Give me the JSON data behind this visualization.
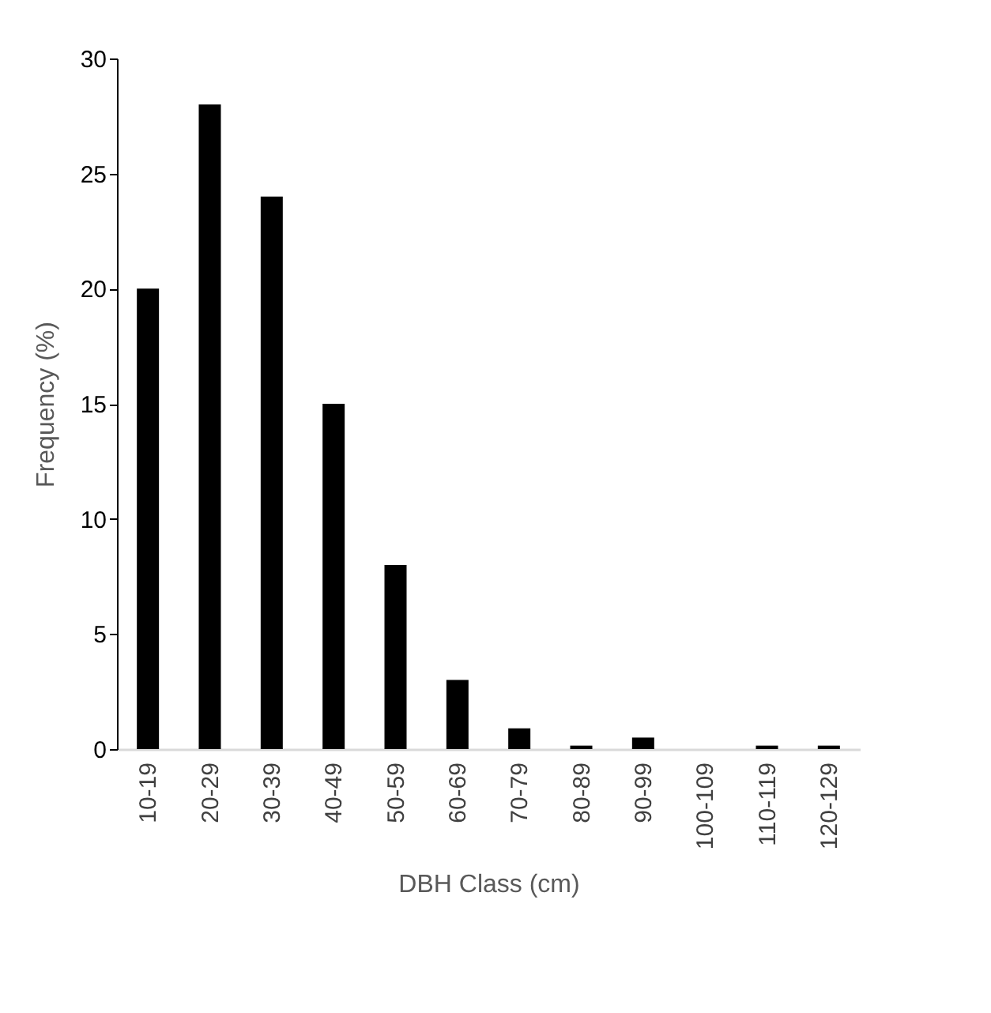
{
  "chart_data": {
    "type": "bar",
    "xlabel": "DBH Class (cm)",
    "ylabel": "Frequency (%)",
    "categories": [
      "10-19",
      "20-29",
      "30-39",
      "40-49",
      "50-59",
      "60-69",
      "70-79",
      "80-89",
      "90-99",
      "100-109",
      "110-119",
      "120-129"
    ],
    "values": [
      20,
      28,
      24,
      15,
      8,
      3,
      0.9,
      0.15,
      0.5,
      0,
      0.15,
      0.15
    ],
    "color": "#000000",
    "ylim": [
      0,
      30
    ],
    "yticks": [
      0,
      5,
      10,
      15,
      20,
      25,
      30
    ],
    "grid": false
  }
}
